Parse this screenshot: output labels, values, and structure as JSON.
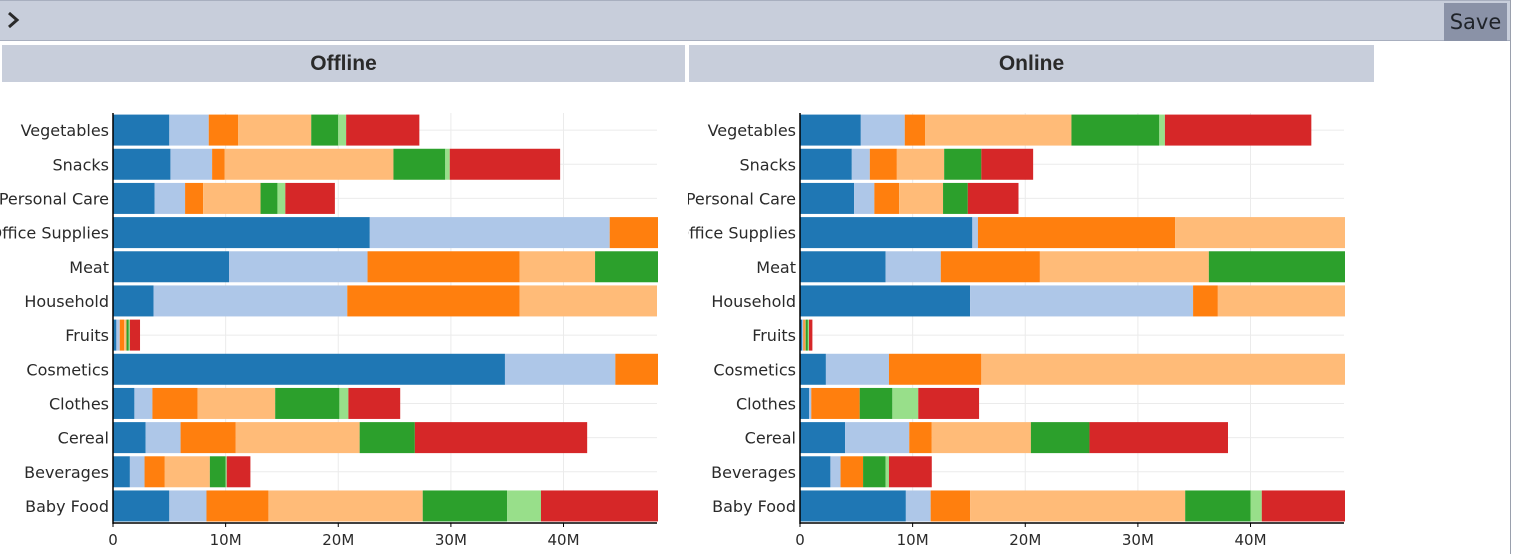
{
  "toolbar": {
    "expand_icon": "chevron-right-icon",
    "save_label": "Save"
  },
  "panels": [
    {
      "key": "offline",
      "title": "Offline"
    },
    {
      "key": "online",
      "title": "Online"
    }
  ],
  "colors": [
    "#1f77b4",
    "#aec7e8",
    "#ff7f0e",
    "#ffbb78",
    "#2ca02c",
    "#98df8a",
    "#d62728"
  ],
  "chart_data": [
    {
      "type": "bar",
      "orientation": "horizontal",
      "stacked": true,
      "title": "Offline",
      "categories": [
        "Vegetables",
        "Snacks",
        "Personal Care",
        "Office Supplies",
        "Meat",
        "Household",
        "Fruits",
        "Cosmetics",
        "Clothes",
        "Cereal",
        "Beverages",
        "Baby Food"
      ],
      "x_ticks": [
        0,
        10,
        20,
        30,
        40
      ],
      "x_tick_labels": [
        "0",
        "10M",
        "20M",
        "30M",
        "40M"
      ],
      "xlim": [
        0,
        48.3
      ],
      "grid": true,
      "segments": [
        [
          5.0,
          3.5,
          2.6,
          6.5,
          2.4,
          0.7,
          6.5
        ],
        [
          5.1,
          3.7,
          1.1,
          15.0,
          4.6,
          0.4,
          9.8
        ],
        [
          3.7,
          2.7,
          1.6,
          5.1,
          1.5,
          0.7,
          4.4
        ],
        [
          22.8,
          21.3,
          4.6,
          0,
          0,
          0,
          0
        ],
        [
          10.3,
          12.3,
          13.5,
          6.7,
          9.2,
          0,
          0
        ],
        [
          3.6,
          17.2,
          15.3,
          12.2,
          0,
          0,
          0
        ],
        [
          0.3,
          0.3,
          0.4,
          0.2,
          0.2,
          0.1,
          0.9
        ],
        [
          34.8,
          9.8,
          6.2,
          0,
          0,
          0,
          0
        ],
        [
          1.9,
          1.6,
          4.0,
          6.9,
          5.7,
          0.8,
          4.6
        ],
        [
          2.9,
          3.1,
          4.9,
          11.0,
          4.9,
          0,
          15.3
        ],
        [
          1.5,
          1.3,
          1.8,
          4.0,
          1.4,
          0.1,
          2.1
        ],
        [
          5.0,
          3.3,
          5.5,
          13.7,
          7.5,
          3.0,
          10.4
        ]
      ]
    },
    {
      "type": "bar",
      "orientation": "horizontal",
      "stacked": true,
      "title": "Online",
      "categories": [
        "Vegetables",
        "Snacks",
        "Personal Care",
        "Office Supplies",
        "Meat",
        "Household",
        "Fruits",
        "Cosmetics",
        "Clothes",
        "Cereal",
        "Beverages",
        "Baby Food"
      ],
      "x_ticks": [
        0,
        10,
        20,
        30,
        40
      ],
      "x_tick_labels": [
        "0",
        "10M",
        "20M",
        "30M",
        "40M"
      ],
      "xlim": [
        0,
        48.3
      ],
      "grid": true,
      "segments": [
        [
          5.4,
          3.9,
          1.8,
          13.0,
          7.8,
          0.5,
          13.0
        ],
        [
          4.6,
          1.6,
          2.4,
          4.2,
          3.3,
          0,
          4.6
        ],
        [
          4.8,
          1.8,
          2.2,
          3.9,
          2.2,
          0,
          4.5
        ],
        [
          15.3,
          0.5,
          17.5,
          17.2,
          0,
          0,
          0
        ],
        [
          7.6,
          4.9,
          8.8,
          15.0,
          14.3,
          0,
          0
        ],
        [
          15.1,
          19.8,
          2.2,
          14.0,
          0,
          0,
          0
        ],
        [
          0.2,
          0.1,
          0.1,
          0.1,
          0.2,
          0.1,
          0.3
        ],
        [
          2.3,
          5.6,
          8.2,
          38.0,
          0,
          0,
          0
        ],
        [
          0.8,
          0.2,
          4.3,
          0,
          2.9,
          2.3,
          5.4
        ],
        [
          4.0,
          5.7,
          2.0,
          8.8,
          5.2,
          0,
          12.3
        ],
        [
          2.7,
          0.9,
          2.0,
          0,
          2.0,
          0.3,
          3.8
        ],
        [
          9.4,
          2.2,
          3.5,
          19.1,
          5.8,
          1.0,
          13.5
        ]
      ]
    }
  ]
}
